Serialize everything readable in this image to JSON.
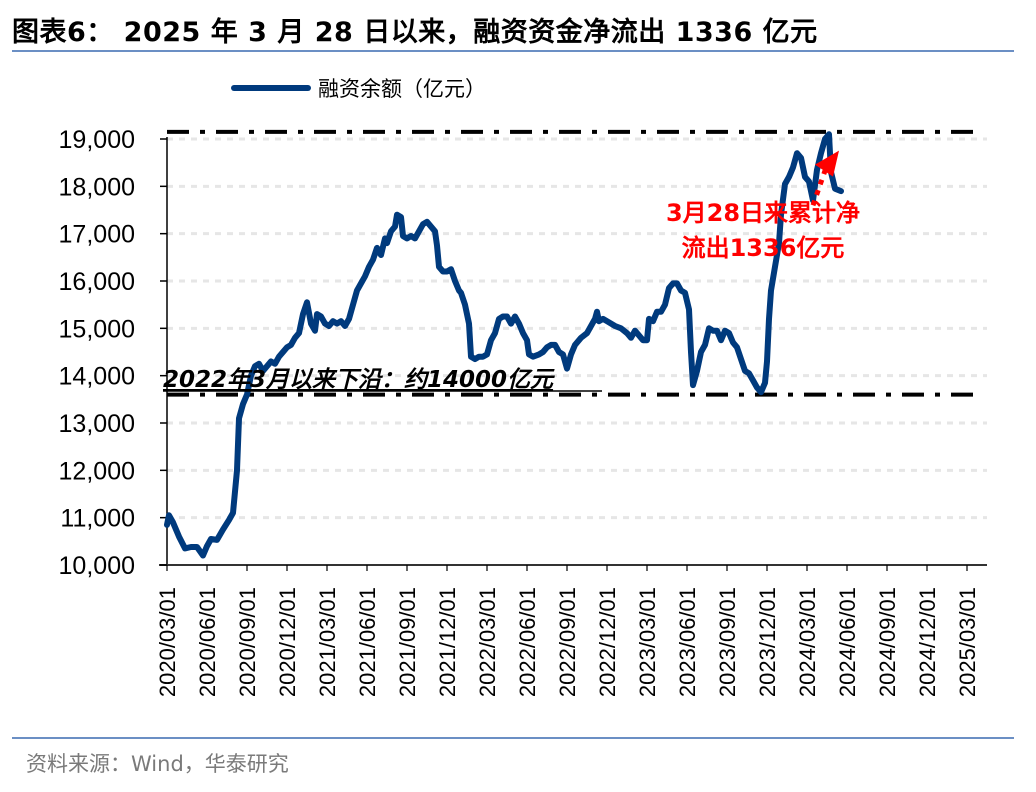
{
  "header": {
    "title": "图表6：  2025 年 3 月 28 日以来，融资资金净流出 1336 亿元"
  },
  "footer": {
    "source": "资料来源：Wind，华泰研究"
  },
  "colors": {
    "series": "#003a7d",
    "annotation": "#ff0000",
    "refline": "#000000",
    "grid": "#e6e6e6",
    "rule": "#6b8fc4"
  },
  "chart_data": {
    "type": "line",
    "title": "2025 年 3 月 28 日以来，融资资金净流出 1336 亿元",
    "xlabel": "",
    "ylabel": "",
    "ylim": [
      10000,
      19000
    ],
    "yticks": [
      "10,000",
      "11,000",
      "12,000",
      "13,000",
      "14,000",
      "15,000",
      "16,000",
      "17,000",
      "18,000",
      "19,000"
    ],
    "xticks": [
      "2020/03/01",
      "2020/06/01",
      "2020/09/01",
      "2020/12/01",
      "2021/03/01",
      "2021/06/01",
      "2021/09/01",
      "2021/12/01",
      "2022/03/01",
      "2022/06/01",
      "2022/09/01",
      "2022/12/01",
      "2023/03/01",
      "2023/06/01",
      "2023/09/01",
      "2023/12/01",
      "2024/03/01",
      "2024/06/01",
      "2024/09/01",
      "2024/12/01",
      "2025/03/01"
    ],
    "grid": true,
    "legend": {
      "position": "top",
      "entries": [
        "融资余额（亿元）"
      ]
    },
    "series": [
      {
        "name": "融资余额（亿元）",
        "x_unit": "quarters since 2020/03/01",
        "points": [
          [
            0.0,
            10850
          ],
          [
            0.05,
            11050
          ],
          [
            0.15,
            10900
          ],
          [
            0.3,
            10600
          ],
          [
            0.45,
            10350
          ],
          [
            0.6,
            10380
          ],
          [
            0.75,
            10380
          ],
          [
            0.9,
            10200
          ],
          [
            1.0,
            10400
          ],
          [
            1.1,
            10550
          ],
          [
            1.25,
            10530
          ],
          [
            1.4,
            10750
          ],
          [
            1.55,
            10950
          ],
          [
            1.65,
            11100
          ],
          [
            1.75,
            12000
          ],
          [
            1.8,
            13100
          ],
          [
            1.9,
            13400
          ],
          [
            2.0,
            13600
          ],
          [
            2.05,
            13800
          ],
          [
            2.1,
            14000
          ],
          [
            2.2,
            14200
          ],
          [
            2.3,
            14250
          ],
          [
            2.4,
            14100
          ],
          [
            2.5,
            14200
          ],
          [
            2.6,
            14300
          ],
          [
            2.7,
            14250
          ],
          [
            2.8,
            14400
          ],
          [
            2.9,
            14500
          ],
          [
            3.0,
            14600
          ],
          [
            3.1,
            14650
          ],
          [
            3.2,
            14800
          ],
          [
            3.3,
            14900
          ],
          [
            3.4,
            15300
          ],
          [
            3.5,
            15550
          ],
          [
            3.6,
            15100
          ],
          [
            3.7,
            14950
          ],
          [
            3.75,
            15300
          ],
          [
            3.85,
            15250
          ],
          [
            3.95,
            15100
          ],
          [
            4.05,
            15050
          ],
          [
            4.15,
            15150
          ],
          [
            4.25,
            15100
          ],
          [
            4.35,
            15150
          ],
          [
            4.45,
            15050
          ],
          [
            4.55,
            15200
          ],
          [
            4.65,
            15500
          ],
          [
            4.75,
            15800
          ],
          [
            4.85,
            15950
          ],
          [
            4.95,
            16100
          ],
          [
            5.05,
            16300
          ],
          [
            5.15,
            16450
          ],
          [
            5.25,
            16700
          ],
          [
            5.35,
            16550
          ],
          [
            5.45,
            16900
          ],
          [
            5.5,
            16800
          ],
          [
            5.6,
            17050
          ],
          [
            5.7,
            17150
          ],
          [
            5.75,
            17400
          ],
          [
            5.85,
            17350
          ],
          [
            5.9,
            16950
          ],
          [
            6.0,
            16900
          ],
          [
            6.1,
            16950
          ],
          [
            6.2,
            16900
          ],
          [
            6.3,
            17050
          ],
          [
            6.4,
            17200
          ],
          [
            6.5,
            17250
          ],
          [
            6.6,
            17150
          ],
          [
            6.7,
            17050
          ],
          [
            6.75,
            16750
          ],
          [
            6.8,
            16300
          ],
          [
            6.9,
            16200
          ],
          [
            7.0,
            16200
          ],
          [
            7.1,
            16250
          ],
          [
            7.2,
            16000
          ],
          [
            7.3,
            15800
          ],
          [
            7.35,
            15750
          ],
          [
            7.45,
            15500
          ],
          [
            7.55,
            15100
          ],
          [
            7.6,
            14400
          ],
          [
            7.7,
            14350
          ],
          [
            7.8,
            14400
          ],
          [
            7.9,
            14400
          ],
          [
            8.0,
            14450
          ],
          [
            8.1,
            14750
          ],
          [
            8.2,
            14900
          ],
          [
            8.3,
            15200
          ],
          [
            8.4,
            15250
          ],
          [
            8.5,
            15250
          ],
          [
            8.6,
            15100
          ],
          [
            8.7,
            15250
          ],
          [
            8.8,
            15100
          ],
          [
            8.9,
            14900
          ],
          [
            9.0,
            14750
          ],
          [
            9.05,
            14450
          ],
          [
            9.15,
            14400
          ],
          [
            9.3,
            14450
          ],
          [
            9.4,
            14500
          ],
          [
            9.5,
            14600
          ],
          [
            9.6,
            14650
          ],
          [
            9.7,
            14650
          ],
          [
            9.8,
            14500
          ],
          [
            9.9,
            14450
          ],
          [
            10.0,
            14150
          ],
          [
            10.1,
            14450
          ],
          [
            10.2,
            14650
          ],
          [
            10.35,
            14800
          ],
          [
            10.5,
            14900
          ],
          [
            10.6,
            15050
          ],
          [
            10.7,
            15200
          ],
          [
            10.75,
            15350
          ],
          [
            10.8,
            15150
          ],
          [
            10.9,
            15200
          ],
          [
            11.0,
            15150
          ],
          [
            11.1,
            15100
          ],
          [
            11.2,
            15050
          ],
          [
            11.35,
            15000
          ],
          [
            11.5,
            14900
          ],
          [
            11.6,
            14800
          ],
          [
            11.7,
            14950
          ],
          [
            11.8,
            14850
          ],
          [
            11.9,
            14750
          ],
          [
            12.0,
            14750
          ],
          [
            12.05,
            15200
          ],
          [
            12.15,
            15150
          ],
          [
            12.25,
            15350
          ],
          [
            12.35,
            15350
          ],
          [
            12.45,
            15500
          ],
          [
            12.55,
            15850
          ],
          [
            12.65,
            15950
          ],
          [
            12.75,
            15950
          ],
          [
            12.85,
            15800
          ],
          [
            12.95,
            15750
          ],
          [
            13.05,
            15400
          ],
          [
            13.1,
            14500
          ],
          [
            13.15,
            13800
          ],
          [
            13.25,
            14100
          ],
          [
            13.35,
            14500
          ],
          [
            13.45,
            14650
          ],
          [
            13.55,
            15000
          ],
          [
            13.65,
            14950
          ],
          [
            13.75,
            14950
          ],
          [
            13.85,
            14750
          ],
          [
            13.95,
            14950
          ],
          [
            14.05,
            14900
          ],
          [
            14.15,
            14700
          ],
          [
            14.25,
            14600
          ],
          [
            14.35,
            14350
          ],
          [
            14.45,
            14100
          ],
          [
            14.55,
            14050
          ],
          [
            14.65,
            13900
          ],
          [
            14.75,
            13750
          ],
          [
            14.85,
            13650
          ],
          [
            14.95,
            13850
          ],
          [
            15.0,
            14300
          ],
          [
            15.05,
            15200
          ],
          [
            15.1,
            15800
          ],
          [
            15.2,
            16300
          ],
          [
            15.3,
            16800
          ],
          [
            15.35,
            17400
          ],
          [
            15.45,
            18050
          ],
          [
            15.55,
            18200
          ],
          [
            15.65,
            18400
          ],
          [
            15.75,
            18700
          ],
          [
            15.85,
            18600
          ],
          [
            15.95,
            18200
          ],
          [
            16.05,
            18100
          ],
          [
            16.15,
            17700
          ],
          [
            16.25,
            18350
          ],
          [
            16.35,
            18700
          ],
          [
            16.45,
            19000
          ],
          [
            16.55,
            19100
          ],
          [
            16.6,
            18300
          ],
          [
            16.7,
            17950
          ],
          [
            16.85,
            17900
          ]
        ]
      }
    ],
    "reference_lines": [
      {
        "value": 19150,
        "style": "dash-dot",
        "label": ""
      },
      {
        "value": 13600,
        "style": "dash-dot",
        "label": "2022年3月以来下沿：约14000亿元"
      }
    ],
    "annotations": [
      {
        "text_line1": "3月28日来累计净",
        "text_line2": "流出1336亿元",
        "color": "#ff0000"
      },
      {
        "type": "dotted-arrow",
        "from": [
          16.15,
          17600
        ],
        "to": [
          16.7,
          18500
        ],
        "color": "#ff0000"
      }
    ]
  }
}
